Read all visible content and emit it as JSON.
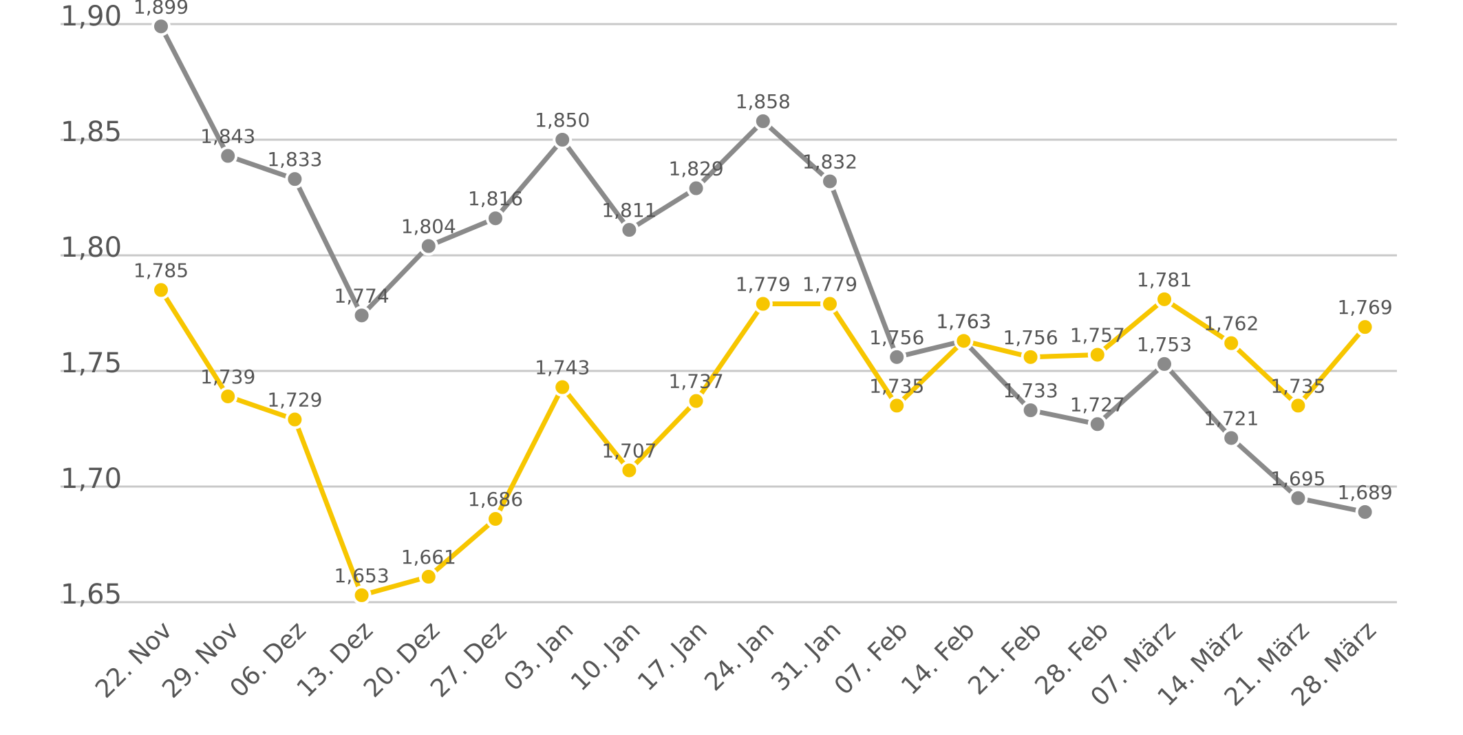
{
  "chart_data": {
    "type": "line",
    "title": "",
    "xlabel": "",
    "ylabel": "",
    "ylim": [
      1.65,
      1.9
    ],
    "grid": true,
    "y_ticks": [
      {
        "value": 1.65,
        "label": "1,65"
      },
      {
        "value": 1.7,
        "label": "1,70"
      },
      {
        "value": 1.75,
        "label": "1,75"
      },
      {
        "value": 1.8,
        "label": "1,80"
      },
      {
        "value": 1.85,
        "label": "1,85"
      },
      {
        "value": 1.9,
        "label": "1,90"
      }
    ],
    "categories": [
      "22. Nov",
      "29. Nov",
      "06. Dez",
      "13. Dez",
      "20. Dez",
      "27. Dez",
      "03. Jan",
      "10. Jan",
      "17. Jan",
      "24. Jan",
      "31. Jan",
      "07. Feb",
      "14. Feb",
      "21. Feb",
      "28. Feb",
      "07. März",
      "14. März",
      "21. März",
      "28. März"
    ],
    "series": [
      {
        "name": "gray",
        "color": "#8a8a8a",
        "values": [
          1.899,
          1.843,
          1.833,
          1.774,
          1.804,
          1.816,
          1.85,
          1.811,
          1.829,
          1.858,
          1.832,
          1.756,
          1.763,
          1.733,
          1.727,
          1.753,
          1.721,
          1.695,
          1.689
        ],
        "labels": [
          "1,899",
          "1,843",
          "1,833",
          "1,774",
          "1,804",
          "1,816",
          "1,850",
          "1,811",
          "1,829",
          "1,858",
          "1,832",
          "1,756",
          "1,763",
          "1,733",
          "1,727",
          "1,753",
          "1,721",
          "1,695",
          "1,689"
        ]
      },
      {
        "name": "yellow",
        "color": "#f7c600",
        "values": [
          1.785,
          1.739,
          1.729,
          1.653,
          1.661,
          1.686,
          1.743,
          1.707,
          1.737,
          1.779,
          1.779,
          1.735,
          1.763,
          1.756,
          1.757,
          1.781,
          1.762,
          1.735,
          1.769
        ],
        "labels": [
          "1,785",
          "1,739",
          "1,729",
          "1,653",
          "1,661",
          "1,686",
          "1,743",
          "1,707",
          "1,737",
          "1,779",
          "1,779",
          "1,735",
          "1,763",
          "1,756",
          "1,757",
          "1,781",
          "1,762",
          "1,735",
          "1,769"
        ]
      }
    ]
  }
}
